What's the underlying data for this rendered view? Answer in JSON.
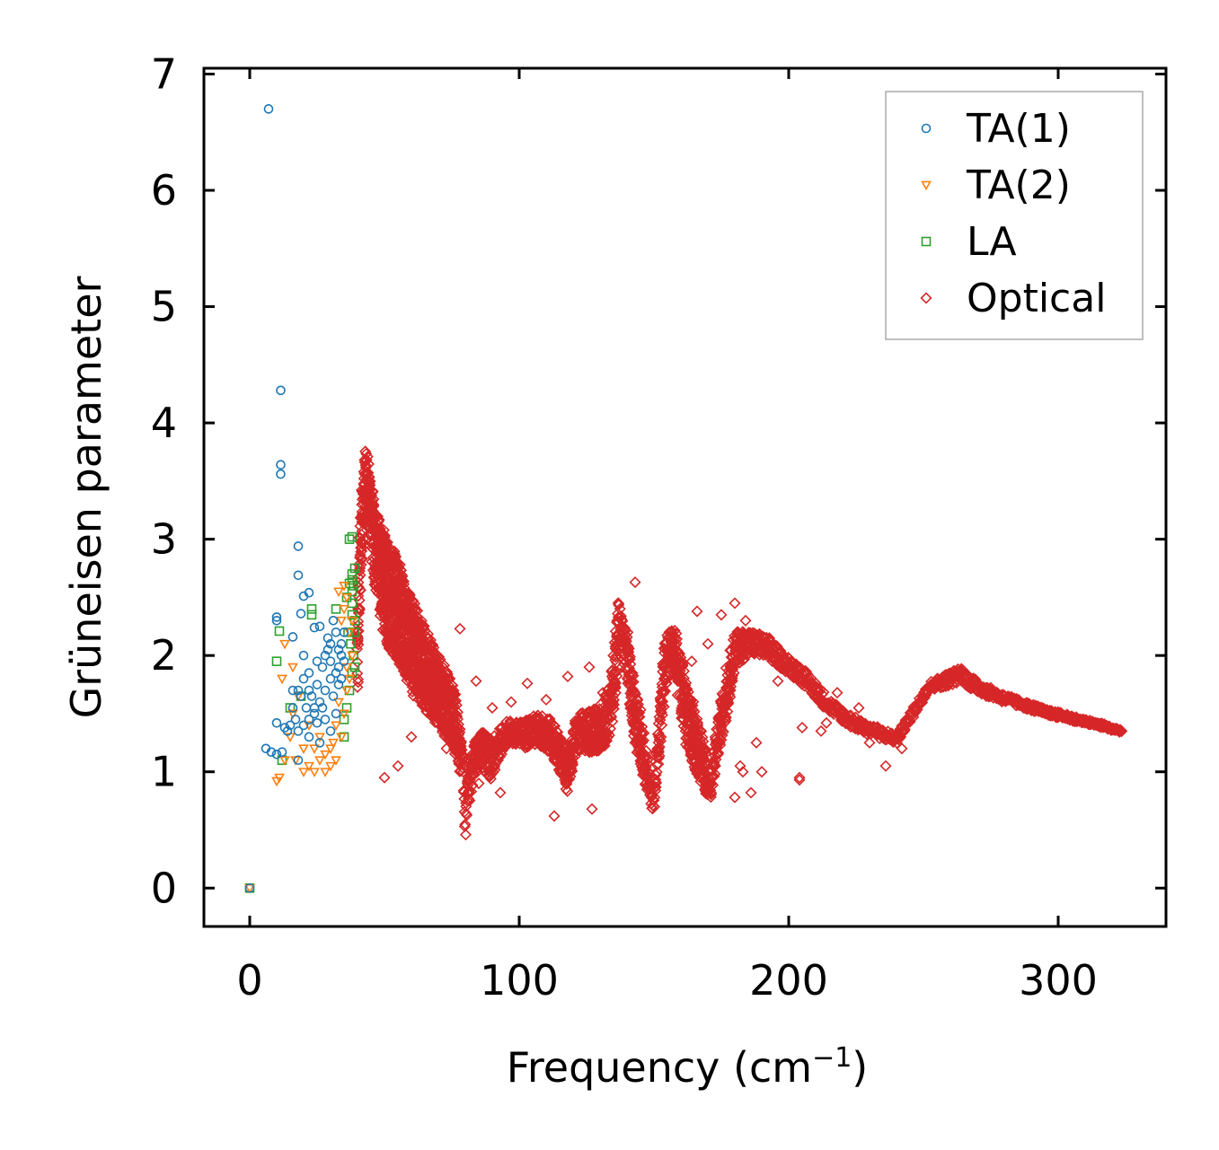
{
  "chart_data": {
    "type": "scatter",
    "title": "",
    "xlabel": "Frequency (cm",
    "xlabel_sup": "−1",
    "xlabel_close": ")",
    "ylabel": "Grüneisen parameter",
    "xlim": [
      -17,
      340
    ],
    "ylim": [
      -0.33,
      7.05
    ],
    "xticks": [
      0,
      100,
      200,
      300
    ],
    "yticks": [
      0,
      1,
      2,
      3,
      4,
      5,
      6,
      7
    ],
    "xtick_labels": [
      "0",
      "100",
      "200",
      "300"
    ],
    "ytick_labels": [
      "0",
      "1",
      "2",
      "3",
      "4",
      "5",
      "6",
      "7"
    ],
    "legend_position": "top-right",
    "grid": false,
    "series": [
      {
        "name": "TA(1)",
        "color": "#1f77b4",
        "marker": "circle",
        "points": [
          [
            0,
            0
          ],
          [
            7,
            6.7
          ],
          [
            11.5,
            4.28
          ],
          [
            11.5,
            3.64
          ],
          [
            11.5,
            3.56
          ],
          [
            18,
            2.94
          ],
          [
            18,
            2.69
          ],
          [
            22,
            2.54
          ],
          [
            20,
            2.51
          ],
          [
            10,
            2.33
          ],
          [
            10,
            2.3
          ],
          [
            16,
            2.16
          ],
          [
            19,
            2.36
          ],
          [
            24,
            2.24
          ],
          [
            26,
            2.25
          ],
          [
            20,
            2.0
          ],
          [
            22,
            1.85
          ],
          [
            25,
            1.95
          ],
          [
            28,
            2.0
          ],
          [
            30,
            2.1
          ],
          [
            32,
            2.2
          ],
          [
            34,
            2.1
          ],
          [
            33,
            1.9
          ],
          [
            30,
            1.8
          ],
          [
            28,
            1.7
          ],
          [
            26,
            1.6
          ],
          [
            24,
            1.5
          ],
          [
            22,
            1.45
          ],
          [
            20,
            1.4
          ],
          [
            18,
            1.35
          ],
          [
            16,
            1.7
          ],
          [
            15,
            1.4
          ],
          [
            13,
            1.38
          ],
          [
            10,
            1.42
          ],
          [
            8,
            1.17
          ],
          [
            10,
            1.15
          ],
          [
            12,
            1.17
          ],
          [
            6,
            1.2
          ],
          [
            18,
            1.1
          ],
          [
            22,
            1.3
          ],
          [
            24,
            1.55
          ],
          [
            27,
            1.9
          ],
          [
            29,
            2.05
          ],
          [
            31,
            1.65
          ],
          [
            33,
            1.75
          ],
          [
            35,
            1.95
          ],
          [
            32,
            1.5
          ],
          [
            30,
            1.35
          ],
          [
            28,
            1.45
          ],
          [
            26,
            1.25
          ],
          [
            25,
            1.75
          ],
          [
            23,
            1.65
          ],
          [
            21,
            1.55
          ],
          [
            19,
            1.65
          ],
          [
            17,
            1.45
          ],
          [
            14,
            1.35
          ],
          [
            29,
            2.15
          ],
          [
            31,
            2.3
          ],
          [
            34,
            2.0
          ],
          [
            35,
            2.2
          ],
          [
            27,
            1.55
          ],
          [
            25,
            1.42
          ],
          [
            22,
            1.7
          ],
          [
            20,
            1.8
          ],
          [
            18,
            1.7
          ],
          [
            16,
            1.55
          ],
          [
            30,
            1.95
          ],
          [
            32,
            1.85
          ],
          [
            34,
            1.8
          ],
          [
            33,
            2.05
          ]
        ]
      },
      {
        "name": "TA(2)",
        "color": "#ff7f0e",
        "marker": "triangle-down",
        "points": [
          [
            0,
            0
          ],
          [
            10,
            0.92
          ],
          [
            11,
            0.95
          ],
          [
            13,
            1.1
          ],
          [
            12,
            1.8
          ],
          [
            16,
            1.5
          ],
          [
            18,
            1.65
          ],
          [
            20,
            1.0
          ],
          [
            22,
            1.05
          ],
          [
            24,
            1.0
          ],
          [
            26,
            1.1
          ],
          [
            28,
            1.0
          ],
          [
            30,
            1.05
          ],
          [
            32,
            1.1
          ],
          [
            34,
            1.3
          ],
          [
            35,
            1.5
          ],
          [
            36,
            1.9
          ],
          [
            37,
            2.2
          ],
          [
            36,
            2.5
          ],
          [
            35,
            2.6
          ],
          [
            34,
            2.3
          ],
          [
            33,
            1.6
          ],
          [
            32,
            1.4
          ],
          [
            30,
            1.2
          ],
          [
            28,
            1.15
          ],
          [
            26,
            1.3
          ],
          [
            24,
            1.2
          ],
          [
            22,
            1.4
          ],
          [
            20,
            1.2
          ],
          [
            15,
            1.3
          ],
          [
            17,
            1.1
          ],
          [
            13,
            2.1
          ],
          [
            16,
            1.9
          ],
          [
            38,
            2.0
          ],
          [
            38,
            2.3
          ],
          [
            37,
            1.8
          ],
          [
            36,
            1.7
          ],
          [
            35,
            2.4
          ],
          [
            33,
            2.55
          ],
          [
            31,
            1.25
          ]
        ]
      },
      {
        "name": "LA",
        "color": "#2ca02c",
        "marker": "square",
        "points": [
          [
            0,
            0
          ],
          [
            11,
            2.21
          ],
          [
            10,
            1.95
          ],
          [
            15,
            1.55
          ],
          [
            19,
            1.65
          ],
          [
            23,
            2.35
          ],
          [
            23,
            2.4
          ],
          [
            32,
            2.4
          ],
          [
            37,
            3.0
          ],
          [
            38,
            3.02
          ],
          [
            38,
            2.7
          ],
          [
            38.5,
            2.6
          ],
          [
            38,
            2.45
          ],
          [
            39,
            2.3
          ],
          [
            39,
            2.2
          ],
          [
            38.5,
            2.0
          ],
          [
            38,
            1.85
          ],
          [
            37,
            1.7
          ],
          [
            36,
            1.55
          ],
          [
            35,
            1.45
          ],
          [
            35,
            1.3
          ],
          [
            12,
            1.1
          ],
          [
            38,
            2.55
          ],
          [
            38,
            2.65
          ],
          [
            39,
            1.9
          ],
          [
            37.5,
            2.1
          ],
          [
            36.5,
            2.2
          ],
          [
            38,
            2.35
          ],
          [
            39,
            2.75
          ],
          [
            37,
            2.62
          ],
          [
            36,
            2.5
          ]
        ]
      },
      {
        "name": "Optical",
        "color": "#d62728",
        "marker": "diamond",
        "bands": [
          [
            40,
            2.0,
            0.7
          ],
          [
            41,
            2.9,
            0.7
          ],
          [
            42,
            3.3,
            0.6
          ],
          [
            43,
            3.5,
            0.6
          ],
          [
            44,
            3.4,
            0.6
          ],
          [
            45,
            3.2,
            0.6
          ],
          [
            46,
            3.0,
            0.7
          ],
          [
            47,
            2.9,
            0.7
          ],
          [
            48,
            2.8,
            0.8
          ],
          [
            50,
            2.6,
            0.9
          ],
          [
            52,
            2.5,
            0.9
          ],
          [
            55,
            2.4,
            0.9
          ],
          [
            58,
            2.2,
            0.8
          ],
          [
            62,
            2.0,
            0.8
          ],
          [
            66,
            1.85,
            0.7
          ],
          [
            70,
            1.7,
            0.6
          ],
          [
            74,
            1.55,
            0.6
          ],
          [
            77,
            1.35,
            0.5
          ],
          [
            79,
            1.0,
            0.3
          ],
          [
            80,
            0.5,
            0.1
          ],
          [
            81,
            0.8,
            0.3
          ],
          [
            83,
            1.1,
            0.3
          ],
          [
            86,
            1.2,
            0.3
          ],
          [
            88,
            1.15,
            0.35
          ],
          [
            90,
            1.1,
            0.35
          ],
          [
            93,
            1.25,
            0.25
          ],
          [
            96,
            1.35,
            0.2
          ],
          [
            100,
            1.3,
            0.25
          ],
          [
            104,
            1.35,
            0.25
          ],
          [
            108,
            1.35,
            0.3
          ],
          [
            112,
            1.3,
            0.3
          ],
          [
            116,
            1.1,
            0.35
          ],
          [
            118,
            1.0,
            0.35
          ],
          [
            121,
            1.3,
            0.3
          ],
          [
            124,
            1.35,
            0.35
          ],
          [
            128,
            1.35,
            0.4
          ],
          [
            131,
            1.4,
            0.4
          ],
          [
            134,
            1.55,
            0.45
          ],
          [
            136,
            2.0,
            0.5
          ],
          [
            137,
            2.35,
            0.25
          ],
          [
            138,
            2.2,
            0.3
          ],
          [
            140,
            2.0,
            0.4
          ],
          [
            142,
            1.6,
            0.5
          ],
          [
            145,
            1.3,
            0.5
          ],
          [
            148,
            0.9,
            0.25
          ],
          [
            150,
            0.75,
            0.2
          ],
          [
            152,
            1.3,
            0.4
          ],
          [
            154,
            1.9,
            0.45
          ],
          [
            156,
            2.1,
            0.35
          ],
          [
            158,
            2.0,
            0.4
          ],
          [
            160,
            1.75,
            0.5
          ],
          [
            162,
            1.5,
            0.55
          ],
          [
            165,
            1.3,
            0.55
          ],
          [
            168,
            1.1,
            0.45
          ],
          [
            171,
            0.85,
            0.2
          ],
          [
            174,
            1.3,
            0.35
          ],
          [
            177,
            1.7,
            0.4
          ],
          [
            180,
            2.05,
            0.3
          ],
          [
            184,
            2.1,
            0.25
          ],
          [
            188,
            2.1,
            0.2
          ],
          [
            193,
            2.05,
            0.2
          ],
          [
            198,
            1.95,
            0.15
          ],
          [
            204,
            1.85,
            0.15
          ],
          [
            210,
            1.7,
            0.15
          ],
          [
            216,
            1.55,
            0.12
          ],
          [
            222,
            1.45,
            0.12
          ],
          [
            228,
            1.38,
            0.1
          ],
          [
            234,
            1.33,
            0.1
          ],
          [
            240,
            1.28,
            0.08
          ],
          [
            252,
            1.73,
            0.08
          ],
          [
            256,
            1.77,
            0.1
          ],
          [
            260,
            1.8,
            0.12
          ],
          [
            264,
            1.84,
            0.13
          ],
          [
            268,
            1.76,
            0.12
          ],
          [
            272,
            1.71,
            0.1
          ],
          [
            276,
            1.67,
            0.08
          ],
          [
            280,
            1.63,
            0.08
          ],
          [
            284,
            1.6,
            0.07
          ],
          [
            288,
            1.57,
            0.06
          ],
          [
            292,
            1.54,
            0.06
          ],
          [
            296,
            1.51,
            0.05
          ],
          [
            300,
            1.49,
            0.05
          ],
          [
            304,
            1.47,
            0.05
          ],
          [
            308,
            1.44,
            0.04
          ],
          [
            312,
            1.42,
            0.04
          ],
          [
            316,
            1.4,
            0.04
          ],
          [
            320,
            1.37,
            0.03
          ],
          [
            324,
            1.35,
            0.03
          ]
        ],
        "outliers": [
          [
            143,
            2.63
          ],
          [
            131,
            1.68
          ],
          [
            126,
            1.9
          ],
          [
            118,
            1.82
          ],
          [
            110,
            1.62
          ],
          [
            103,
            1.76
          ],
          [
            97,
            1.6
          ],
          [
            90,
            1.55
          ],
          [
            84,
            1.78
          ],
          [
            78,
            2.23
          ],
          [
            85,
            0.9
          ],
          [
            93,
            0.82
          ],
          [
            113,
            0.62
          ],
          [
            127,
            0.68
          ],
          [
            180,
            2.45
          ],
          [
            175,
            2.35
          ],
          [
            166,
            2.38
          ],
          [
            183,
            1.0
          ],
          [
            186,
            0.82
          ],
          [
            180,
            0.78
          ],
          [
            182,
            1.05
          ],
          [
            188,
            1.25
          ],
          [
            190,
            1.0
          ],
          [
            204,
            0.95
          ],
          [
            204,
            0.93
          ],
          [
            205,
            1.38
          ],
          [
            212,
            1.35
          ],
          [
            214,
            1.42
          ],
          [
            220,
            1.45
          ],
          [
            230,
            1.25
          ],
          [
            236,
            1.05
          ],
          [
            242,
            1.2
          ],
          [
            238,
            1.3
          ],
          [
            226,
            1.55
          ],
          [
            218,
            1.68
          ],
          [
            200,
            1.9
          ],
          [
            196,
            1.78
          ],
          [
            184,
            2.3
          ],
          [
            170,
            2.1
          ],
          [
            164,
            1.95
          ],
          [
            70,
            1.88
          ],
          [
            65,
            1.75
          ],
          [
            68,
            1.5
          ],
          [
            73,
            1.2
          ],
          [
            60,
            1.3
          ],
          [
            50,
            0.95
          ],
          [
            55,
            1.05
          ]
        ]
      }
    ]
  }
}
